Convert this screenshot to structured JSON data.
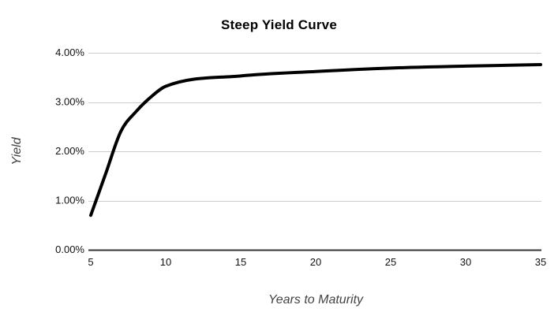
{
  "chart_data": {
    "type": "line",
    "title": "Steep Yield Curve",
    "xlabel": "Years to Maturity",
    "ylabel": "Yield",
    "x": [
      5,
      6,
      7,
      8,
      9,
      10,
      15,
      20,
      25,
      30,
      35
    ],
    "series": [
      {
        "name": "Yield",
        "values": [
          0.7,
          1.55,
          2.4,
          2.8,
          3.1,
          3.32,
          3.53,
          3.62,
          3.69,
          3.73,
          3.76
        ]
      }
    ],
    "xlim": [
      5,
      35
    ],
    "ylim": [
      0,
      4
    ],
    "x_ticks": [
      "5",
      "10",
      "15",
      "20",
      "25",
      "30",
      "35"
    ],
    "x_tick_values": [
      5,
      10,
      15,
      20,
      25,
      30,
      35
    ],
    "y_ticks": [
      "0.00%",
      "1.00%",
      "2.00%",
      "3.00%",
      "4.00%"
    ],
    "y_tick_values": [
      0,
      1,
      2,
      3,
      4
    ],
    "grid": "horizontal",
    "legend": "none",
    "smooth": true,
    "colors": {
      "line": "#000000",
      "gridline": "#cccccc",
      "axis_line": "#333333",
      "tick_label": "#111111",
      "axis_title": "#424242",
      "title": "#000000",
      "background": "#ffffff"
    }
  }
}
